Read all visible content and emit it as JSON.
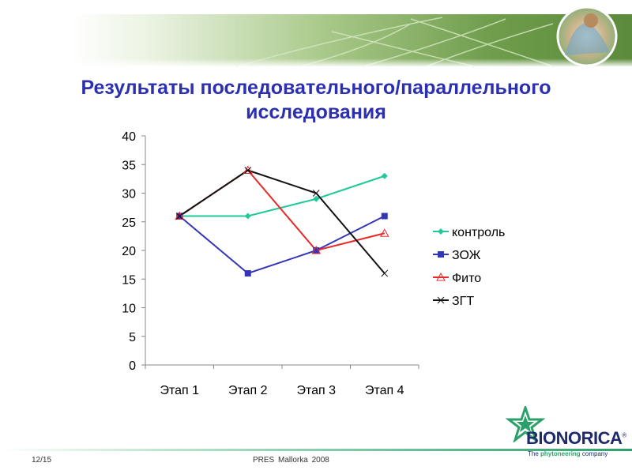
{
  "slide": {
    "title": "Результаты последовательного/параллельного исследования",
    "footer_page": "12/15",
    "footer_text": "PRES  Mallorka  2008"
  },
  "brand": {
    "name": "BIONORICA",
    "registered": "®",
    "tagline_prefix": "The ",
    "tagline_highlight": "phytoneering",
    "tagline_suffix": " company",
    "accent_color": "#2aa06a",
    "name_color": "#1f2a6b"
  },
  "chart_data": {
    "type": "line",
    "title": "",
    "xlabel": "",
    "ylabel": "",
    "categories": [
      "Этап 1",
      "Этап 2",
      "Этап 3",
      "Этап 4"
    ],
    "ylim": [
      0,
      40
    ],
    "yticks": [
      0,
      5,
      10,
      15,
      20,
      25,
      30,
      35,
      40
    ],
    "grid": false,
    "legend_position": "right",
    "series": [
      {
        "name": "контроль",
        "values": [
          26,
          26,
          29,
          33
        ],
        "color": "#1fc99a",
        "marker": "diamond"
      },
      {
        "name": "ЗОЖ",
        "values": [
          26,
          16,
          20,
          26
        ],
        "color": "#3535b8",
        "marker": "square"
      },
      {
        "name": "Фито",
        "values": [
          26,
          34,
          20,
          23
        ],
        "color": "#e82a2a",
        "marker": "triangle"
      },
      {
        "name": "ЗГТ",
        "values": [
          26,
          34,
          30,
          16
        ],
        "color": "#111111",
        "marker": "x"
      }
    ]
  }
}
